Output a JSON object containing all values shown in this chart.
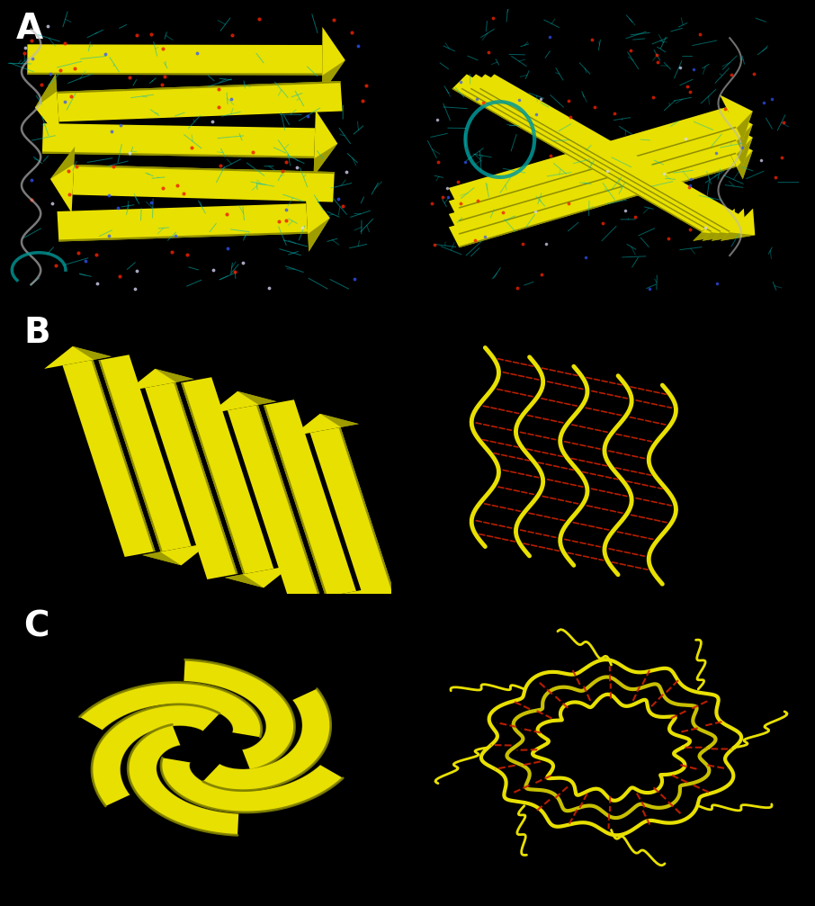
{
  "background_color": "#000000",
  "label_A": "A",
  "label_B": "B",
  "label_C": "C",
  "label_color": "#ffffff",
  "label_fontsize": 28,
  "label_fontweight": "bold",
  "figsize": [
    9.06,
    10.07
  ],
  "dpi": 100,
  "yellow_bright": "#e8e000",
  "yellow_mid": "#c8c000",
  "yellow_dark": "#808000",
  "cyan_color": "#00bbbb",
  "red_color": "#cc2200",
  "white_color": "#ffffff",
  "gray_color": "#888888"
}
